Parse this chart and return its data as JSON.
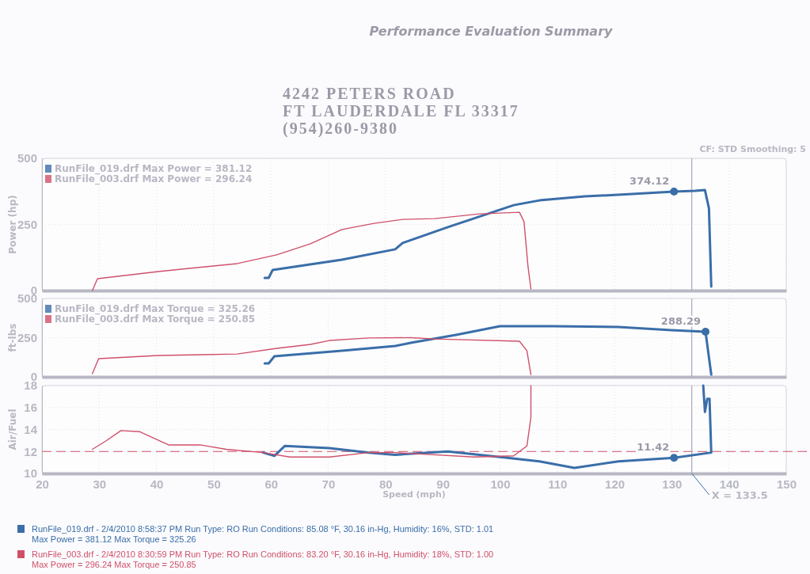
{
  "chart_data": [
    {
      "type": "line",
      "title": "Performance Evaluation Summary",
      "ylabel": "Power (hp)",
      "xlim": [
        20,
        150
      ],
      "xticks": [
        20,
        30,
        40,
        50,
        60,
        70,
        80,
        90,
        100,
        110,
        120,
        130,
        140,
        150
      ],
      "ylim": [
        0,
        500
      ],
      "yticks": [
        0,
        250,
        500
      ],
      "tick_labels": "y",
      "grid": true,
      "legend": "top left",
      "line_style": "solid",
      "annotations": [
        "4242 PETERS ROAD",
        "FT LAUDERDALE FL 33317",
        "(954)260-9380",
        "CF: STD  Smoothing: 5"
      ],
      "ref_lines": [
        {
          "axis": "x",
          "value": 133.5,
          "color": "#a8a8b8"
        }
      ],
      "series": [
        {
          "name": "RunFile_019.drf Max Power = 381.12",
          "color": "#3a6ea8",
          "x": [
            58.9,
            59.6,
            60.3,
            72.4,
            81.7,
            83,
            90.9,
            102.4,
            106.9,
            114.8,
            123.1,
            130.4,
            134.1,
            135.8,
            136.5,
            136.9
          ],
          "values": [
            48,
            48,
            78,
            117,
            156,
            180,
            240,
            323,
            341,
            356,
            365,
            374,
            377,
            380,
            311,
            15
          ]
        },
        {
          "name": "RunFile_003.drf Max Power = 296.24",
          "color": "#d0506a",
          "x": [
            28.8,
            29.7,
            40.3,
            54.1,
            61,
            66.9,
            72.4,
            78,
            83,
            88.6,
            96.5,
            103.4,
            104.2,
            104.9,
            105.4
          ],
          "values": [
            0,
            45,
            72,
            102,
            135,
            177,
            231,
            254,
            269,
            272,
            290,
            296,
            260,
            90,
            6
          ]
        },
        {
          "type": "scatter",
          "color": "#3a6ea8",
          "x": [
            130.4
          ],
          "values": [
            374.12
          ],
          "value_labels": [
            "374.12"
          ]
        }
      ]
    },
    {
      "type": "line",
      "ylabel": "ft-lbs",
      "xlim": [
        20,
        150
      ],
      "xticks": [
        20,
        30,
        40,
        50,
        60,
        70,
        80,
        90,
        100,
        110,
        120,
        130,
        140,
        150
      ],
      "ylim": [
        0,
        500
      ],
      "yticks": [
        0,
        250,
        500
      ],
      "tick_labels": "y",
      "grid": true,
      "legend": "top left",
      "line_style": "solid",
      "ref_lines": [
        {
          "axis": "x",
          "value": 133.5,
          "color": "#a8a8b8"
        }
      ],
      "series": [
        {
          "name": "RunFile_019.drf Max Torque = 325.26",
          "color": "#3a6ea8",
          "x": [
            58.9,
            59.6,
            60.6,
            72.4,
            81.7,
            84.4,
            92.3,
            100,
            109.2,
            120.7,
            129.9,
            135.9,
            136.9
          ],
          "values": [
            86,
            86,
            131,
            167,
            197,
            217,
            268,
            323,
            323,
            318,
            298,
            288,
            15
          ]
        },
        {
          "name": "RunFile_003.drf Max Torque = 250.85",
          "color": "#d0506a",
          "x": [
            28.8,
            29.9,
            40.3,
            54.1,
            61,
            66.9,
            70.2,
            77.1,
            84.4,
            88.6,
            103.4,
            104.7,
            105.4
          ],
          "values": [
            20,
            116,
            136,
            146,
            182,
            207,
            232,
            248,
            250,
            242,
            227,
            167,
            15
          ]
        },
        {
          "type": "scatter",
          "color": "#3a6ea8",
          "x": [
            135.9
          ],
          "values": [
            288.29
          ],
          "value_labels": [
            "288.29"
          ]
        }
      ]
    },
    {
      "type": "line",
      "xlabel": "Speed (mph)",
      "ylabel": "Air/Fuel",
      "xlim": [
        20,
        150
      ],
      "xticks": [
        20,
        30,
        40,
        50,
        60,
        70,
        80,
        90,
        100,
        110,
        120,
        130,
        140,
        150
      ],
      "ylim": [
        10,
        18
      ],
      "yticks": [
        10,
        12,
        14,
        16,
        18
      ],
      "grid": true,
      "line_style": "solid",
      "annotations": [
        "RunFile_019.drf - 2/4/2010 8:58:37 PM  Run Type: RO  Run Conditions: 85.08 °F, 30.16 in-Hg,  Humidity:  16%, STD: 1.01",
        "Max Power = 381.12  Max Torque = 325.26",
        "RunFile_003.drf - 2/4/2010 8:30:59 PM  Run Type: RO  Run Conditions: 83.20 °F, 30.16 in-Hg,  Humidity:  18%, STD: 1.00",
        "Max Power = 296.24  Max Torque = 250.85"
      ],
      "ref_lines": [
        {
          "axis": "y",
          "value": 12,
          "color": "#d0506a",
          "line_style": "dashed"
        },
        {
          "axis": "x",
          "value": 133.5,
          "label": "X = 133.5",
          "color": "#a8a8b8"
        }
      ],
      "series": [
        {
          "color": "#3a6ea8",
          "x": [
            58.6,
            60.6,
            62.4,
            70.2,
            77.1,
            81.7,
            90.9,
            100,
            106.9,
            113,
            120.7,
            130.4,
            136.9,
            136.6,
            136.2,
            135.8,
            135.5
          ],
          "values": [
            11.9,
            11.6,
            12.5,
            12.3,
            11.9,
            11.7,
            12.0,
            11.5,
            11.1,
            10.5,
            11.1,
            11.42,
            11.9,
            16.8,
            16.8,
            15.6,
            18
          ]
        },
        {
          "color": "#d0506a",
          "x": [
            28.8,
            31,
            33.8,
            37.1,
            42.1,
            47.6,
            52.2,
            58.6,
            63.3,
            70.2,
            77.1,
            81.7,
            95.5,
            102.4,
            104.7,
            105.4,
            105.4
          ],
          "values": [
            12.2,
            12.9,
            13.9,
            13.8,
            12.6,
            12.6,
            12.2,
            11.9,
            11.5,
            11.5,
            11.9,
            11.9,
            11.5,
            11.6,
            12.5,
            15.1,
            18
          ]
        },
        {
          "type": "scatter",
          "color": "#3a6ea8",
          "x": [
            130.4
          ],
          "values": [
            11.42
          ],
          "value_labels": [
            "11.42"
          ]
        }
      ]
    }
  ]
}
